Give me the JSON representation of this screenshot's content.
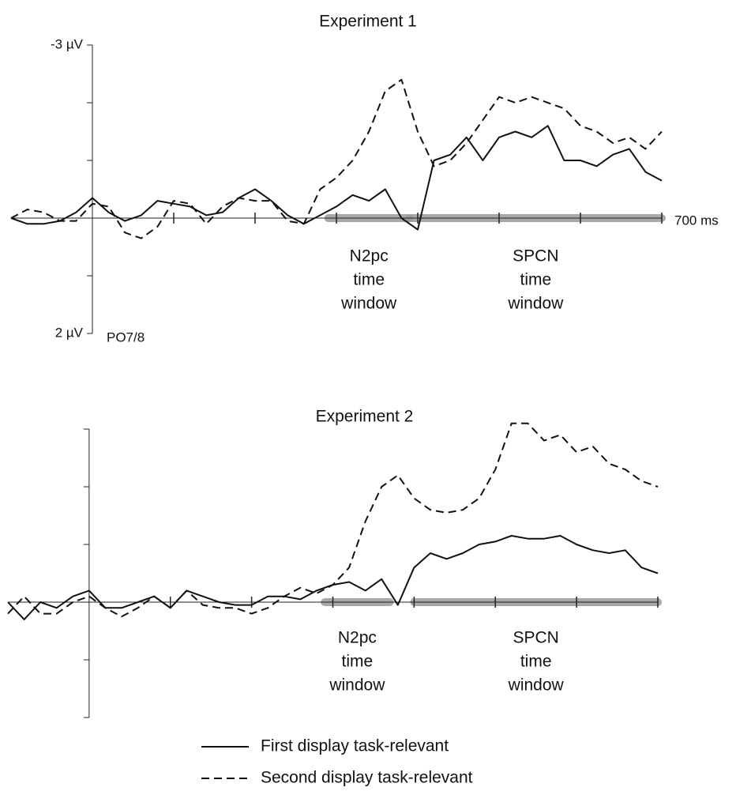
{
  "chart_data": [
    {
      "type": "line",
      "title": "Experiment 1",
      "channel": "PO7/8",
      "y_inverted": true,
      "xlim": [
        -100,
        700
      ],
      "xticks": [
        {
          "value": 100,
          "label": null
        },
        {
          "value": 200,
          "label": null
        },
        {
          "value": 300,
          "label": null
        },
        {
          "value": 400,
          "label": null
        },
        {
          "value": 500,
          "label": null
        },
        {
          "value": 600,
          "label": null
        },
        {
          "value": 700,
          "label": "700 ms"
        }
      ],
      "ylim": [
        -3,
        2
      ],
      "yticks": [
        {
          "value": -3,
          "label": "-3 µV"
        },
        {
          "value": -2,
          "label": null
        },
        {
          "value": -1,
          "label": null
        },
        {
          "value": 0,
          "label": null
        },
        {
          "value": 1,
          "label": null
        },
        {
          "value": 2,
          "label": "2 µV"
        }
      ],
      "windows": [
        {
          "lines": [
            "N2pc",
            "time",
            "window"
          ],
          "range": [
            290,
            390
          ],
          "color": "#999999"
        },
        {
          "lines": [
            "SPCN",
            "time",
            "window"
          ],
          "range": [
            390,
            700
          ],
          "color": "#999999"
        }
      ],
      "x": [
        -100,
        -80,
        -60,
        -40,
        -20,
        0,
        20,
        40,
        60,
        80,
        100,
        120,
        140,
        160,
        180,
        200,
        220,
        240,
        260,
        280,
        300,
        320,
        340,
        360,
        380,
        400,
        420,
        440,
        460,
        480,
        500,
        520,
        540,
        560,
        580,
        600,
        620,
        640,
        660,
        680,
        700
      ],
      "series": [
        {
          "dash": "solid",
          "color": "#111111",
          "values": [
            0,
            0.1,
            0.1,
            0.05,
            -0.1,
            -0.35,
            -0.1,
            0.05,
            -0.05,
            -0.3,
            -0.25,
            -0.2,
            -0.05,
            -0.1,
            -0.35,
            -0.5,
            -0.3,
            -0.05,
            0.1,
            -0.05,
            -0.2,
            -0.4,
            -0.3,
            -0.5,
            0,
            0.2,
            -1.0,
            -1.1,
            -1.4,
            -1.0,
            -1.4,
            -1.5,
            -1.4,
            -1.6,
            -1.0,
            -1.0,
            -0.9,
            -1.1,
            -1.2,
            -0.8,
            -0.65
          ]
        },
        {
          "dash": "dashed",
          "color": "#111111",
          "values": [
            0,
            -0.15,
            -0.1,
            0.05,
            0.05,
            -0.25,
            -0.2,
            0.25,
            0.35,
            0.15,
            -0.3,
            -0.25,
            0.1,
            -0.2,
            -0.35,
            -0.3,
            -0.3,
            0.05,
            0.1,
            -0.5,
            -0.7,
            -1.0,
            -1.5,
            -2.2,
            -2.4,
            -1.5,
            -0.9,
            -1.0,
            -1.3,
            -1.7,
            -2.1,
            -2.0,
            -2.1,
            -2.0,
            -1.9,
            -1.6,
            -1.5,
            -1.3,
            -1.4,
            -1.2,
            -1.5
          ]
        }
      ]
    },
    {
      "type": "line",
      "title": "Experiment 2",
      "y_inverted": true,
      "xlim": [
        -100,
        700
      ],
      "xticks": [
        {
          "value": 100,
          "label": null
        },
        {
          "value": 200,
          "label": null
        },
        {
          "value": 300,
          "label": null
        },
        {
          "value": 400,
          "label": null
        },
        {
          "value": 500,
          "label": null
        },
        {
          "value": 600,
          "label": null
        },
        {
          "value": 700,
          "label": null
        }
      ],
      "ylim": [
        -3,
        2
      ],
      "yticks": [
        {
          "value": -3,
          "label": null
        },
        {
          "value": -2,
          "label": null
        },
        {
          "value": -1,
          "label": null
        },
        {
          "value": 0,
          "label": null
        },
        {
          "value": 1,
          "label": null
        },
        {
          "value": 2,
          "label": null
        }
      ],
      "windows": [
        {
          "lines": [
            "N2pc",
            "time",
            "window"
          ],
          "range": [
            290,
            370
          ],
          "color": "#999999"
        },
        {
          "lines": [
            "SPCN",
            "time",
            "window"
          ],
          "range": [
            400,
            700
          ],
          "color": "#999999"
        }
      ],
      "x": [
        -100,
        -80,
        -60,
        -40,
        -20,
        0,
        20,
        40,
        60,
        80,
        100,
        120,
        140,
        160,
        180,
        200,
        220,
        240,
        260,
        280,
        300,
        320,
        340,
        360,
        380,
        400,
        420,
        440,
        460,
        480,
        500,
        520,
        540,
        560,
        580,
        600,
        620,
        640,
        660,
        680,
        700
      ],
      "series": [
        {
          "dash": "solid",
          "color": "#111111",
          "values": [
            0,
            0.3,
            0,
            0.1,
            -0.1,
            -0.2,
            0.1,
            0.1,
            0,
            -0.1,
            0.1,
            -0.2,
            -0.1,
            0,
            0.05,
            0.05,
            -0.1,
            -0.1,
            -0.05,
            -0.2,
            -0.3,
            -0.35,
            -0.2,
            -0.4,
            0.05,
            -0.6,
            -0.85,
            -0.75,
            -0.85,
            -1.0,
            -1.05,
            -1.15,
            -1.1,
            -1.1,
            -1.15,
            -1.0,
            -0.9,
            -0.85,
            -0.9,
            -0.6,
            -0.5
          ]
        },
        {
          "dash": "dashed",
          "color": "#111111",
          "values": [
            0.2,
            -0.1,
            0.2,
            0.2,
            0,
            -0.1,
            0.1,
            0.25,
            0.1,
            -0.1,
            0.1,
            -0.2,
            0.05,
            0.1,
            0.1,
            0.2,
            0.1,
            -0.1,
            -0.25,
            -0.15,
            -0.3,
            -0.6,
            -1.4,
            -2.0,
            -2.2,
            -1.8,
            -1.6,
            -1.55,
            -1.6,
            -1.8,
            -2.3,
            -3.1,
            -3.1,
            -2.8,
            -2.9,
            -2.6,
            -2.7,
            -2.4,
            -2.3,
            -2.1,
            -2.0
          ]
        }
      ]
    }
  ],
  "legend": [
    {
      "name": "First display task-relevant",
      "dash": "solid"
    },
    {
      "name": "Second display task-relevant",
      "dash": "dashed"
    }
  ]
}
